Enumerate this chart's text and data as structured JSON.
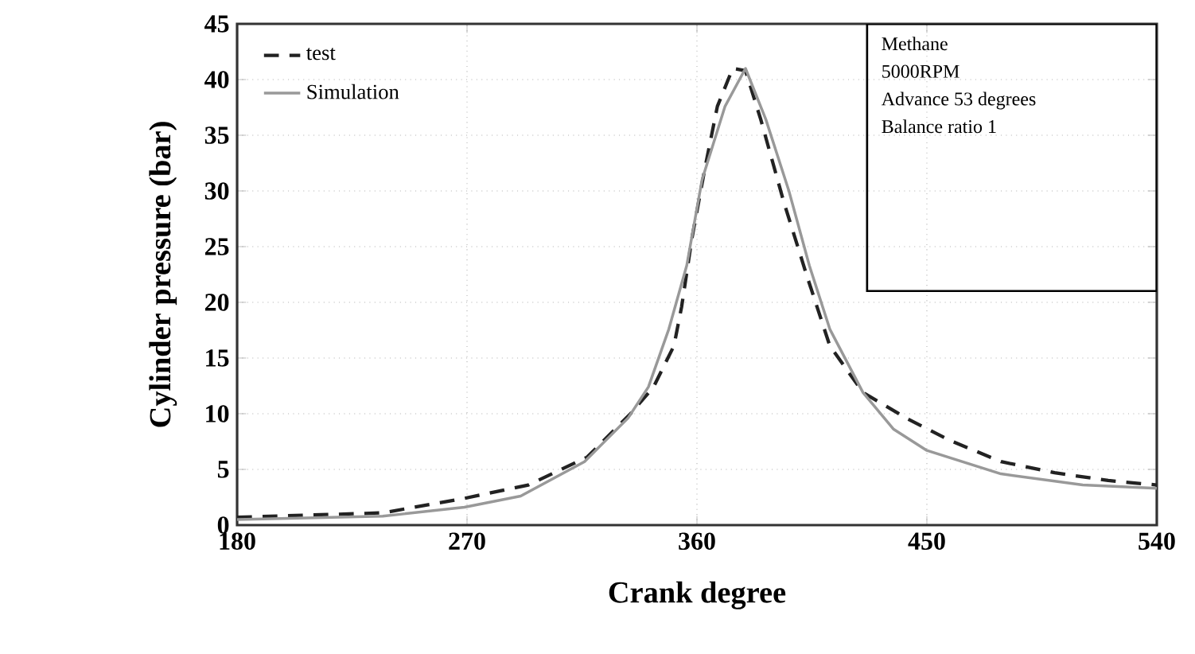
{
  "chart_data": {
    "type": "line",
    "xlabel": "Crank degree",
    "ylabel": "Cylinder pressure (bar)",
    "xlim": [
      180,
      540
    ],
    "xticks": [
      180,
      270,
      360,
      450,
      540
    ],
    "ylim": [
      0,
      45
    ],
    "yticks": [
      0,
      5,
      10,
      15,
      20,
      25,
      30,
      35,
      40,
      45
    ],
    "grid": true,
    "legend": "top left",
    "annotations": [
      "Methane",
      "5000RPM",
      "Advance 53 degrees",
      "Balance ratio 1"
    ],
    "series": [
      {
        "name": "test",
        "color": "#222222",
        "line_style": "dashed",
        "x": [
          180,
          237,
          269,
          294,
          317,
          334,
          343,
          351,
          354,
          358,
          363,
          368,
          374,
          379,
          385,
          394,
          403,
          412,
          425,
          442,
          459,
          479,
          500,
          521,
          540
        ],
        "values": [
          0.7,
          1.1,
          2.4,
          3.6,
          6.1,
          10,
          12.4,
          16.1,
          19.6,
          25.7,
          31.9,
          37.6,
          41,
          40.8,
          36.4,
          29,
          22.4,
          16.1,
          11.9,
          9.6,
          7.6,
          5.7,
          4.7,
          4,
          3.6
        ]
      },
      {
        "name": "Simulation",
        "color": "#999999",
        "line_style": "solid",
        "x": [
          180,
          237,
          269,
          291,
          316,
          333,
          341,
          349,
          356,
          362,
          371,
          379,
          387,
          396,
          404,
          412,
          425,
          437,
          450,
          479,
          511,
          540
        ],
        "values": [
          0.5,
          0.8,
          1.6,
          2.6,
          5.7,
          9.6,
          12.4,
          17.6,
          23.3,
          31,
          37.6,
          41,
          36.4,
          30,
          23.3,
          17.6,
          11.9,
          8.6,
          6.7,
          4.6,
          3.6,
          3.3
        ]
      }
    ]
  }
}
